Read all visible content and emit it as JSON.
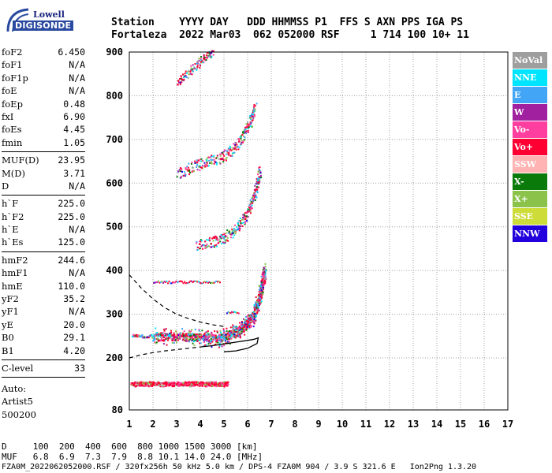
{
  "logo": {
    "line1": "Lowell",
    "line2": "DIGISONDE"
  },
  "header": {
    "line1": "Station    YYYY DAY   DDD HHMMSS P1  FFS S AXN PPS IGA PS",
    "line2": "Fortaleza  2022 Mar03  062 052000 RSF     1 714 100 10+ 11"
  },
  "params": {
    "group1": [
      {
        "label": "foF2",
        "value": "6.450"
      },
      {
        "label": "foF1",
        "value": "N/A"
      },
      {
        "label": "foF1p",
        "value": "N/A"
      },
      {
        "label": "foE",
        "value": "N/A"
      },
      {
        "label": "foEp",
        "value": "0.48"
      },
      {
        "label": "fxI",
        "value": "6.90"
      },
      {
        "label": "foEs",
        "value": "4.45"
      },
      {
        "label": "fmin",
        "value": "1.05"
      }
    ],
    "group2": [
      {
        "label": "MUF(D)",
        "value": "23.95"
      },
      {
        "label": "M(D)",
        "value": "3.71"
      },
      {
        "label": "D",
        "value": "N/A"
      }
    ],
    "group3": [
      {
        "label": "h`F",
        "value": "225.0"
      },
      {
        "label": "h`F2",
        "value": "225.0"
      },
      {
        "label": "h`E",
        "value": "N/A"
      },
      {
        "label": "h`Es",
        "value": "125.0"
      }
    ],
    "group4": [
      {
        "label": "hmF2",
        "value": "244.6"
      },
      {
        "label": "hmF1",
        "value": "N/A"
      },
      {
        "label": "hmE",
        "value": "110.0"
      },
      {
        "label": "yF2",
        "value": "35.2"
      },
      {
        "label": "yF1",
        "value": "N/A"
      },
      {
        "label": "yE",
        "value": "20.0"
      },
      {
        "label": "B0",
        "value": "29.1"
      },
      {
        "label": "B1",
        "value": "4.20"
      }
    ],
    "clevel": {
      "label": "C-level",
      "value": "33"
    },
    "auto": [
      "Auto:",
      "Artist5",
      "500200"
    ]
  },
  "legend": [
    {
      "label": "NoVal",
      "color": "#9e9e9e"
    },
    {
      "label": "NNE",
      "color": "#00e5ff"
    },
    {
      "label": "E",
      "color": "#42a5f5"
    },
    {
      "label": "W",
      "color": "#a020a0"
    },
    {
      "label": "Vo-",
      "color": "#ff3fa0"
    },
    {
      "label": "Vo+",
      "color": "#ff0033"
    },
    {
      "label": "SSW",
      "color": "#ffb3b3"
    },
    {
      "label": "X-",
      "color": "#0a7a0a"
    },
    {
      "label": "X+",
      "color": "#8bc34a"
    },
    {
      "label": "SSE",
      "color": "#cddc39"
    },
    {
      "label": "NNW",
      "color": "#2200dd"
    }
  ],
  "footer": {
    "line1": "D     100  200  400  600  800 1000 1500 3000 [km]",
    "line2": "MUF   6.8  6.9  7.3  7.9  8.8 10.1 14.0 24.0 [MHz]",
    "line3": "FZA0M_2022062052000.RSF / 320fx256h 50 kHz 5.0 km / DPS-4 FZA0M 904 / 3.9 S 321.6 E   Ion2Png 1.3.20"
  },
  "chart_data": {
    "type": "scatter",
    "xlim": [
      1,
      17
    ],
    "ylim": [
      80,
      900
    ],
    "x_ticks": [
      1,
      2,
      3,
      4,
      5,
      6,
      7,
      8,
      9,
      10,
      11,
      12,
      13,
      14,
      15,
      16,
      17
    ],
    "y_ticks": [
      80,
      200,
      300,
      400,
      500,
      600,
      700,
      800,
      900
    ],
    "grid": true,
    "traces": [
      {
        "name": "Es",
        "x_range": [
          1.05,
          4.45
        ],
        "height": 140,
        "color": "#ff0033"
      },
      {
        "name": "F-low",
        "points": [
          [
            2.0,
            250
          ],
          [
            3.0,
            250
          ],
          [
            4.0,
            248
          ],
          [
            4.8,
            245
          ],
          [
            5.3,
            255
          ],
          [
            5.8,
            270
          ],
          [
            6.2,
            295
          ],
          [
            6.45,
            330
          ],
          [
            6.6,
            370
          ],
          [
            6.7,
            400
          ]
        ]
      },
      {
        "name": "F-2hop",
        "points": [
          [
            3.8,
            460
          ],
          [
            4.5,
            465
          ],
          [
            5.0,
            475
          ],
          [
            5.5,
            495
          ],
          [
            5.9,
            525
          ],
          [
            6.2,
            560
          ],
          [
            6.4,
            600
          ],
          [
            6.5,
            630
          ]
        ]
      },
      {
        "name": "F-3hop",
        "points": [
          [
            3.0,
            620
          ],
          [
            3.7,
            640
          ],
          [
            4.3,
            650
          ],
          [
            4.9,
            660
          ],
          [
            5.4,
            680
          ],
          [
            5.8,
            710
          ],
          [
            6.1,
            740
          ],
          [
            6.3,
            780
          ]
        ]
      },
      {
        "name": "F-4hop",
        "points": [
          [
            3.0,
            830
          ],
          [
            3.4,
            850
          ],
          [
            3.8,
            870
          ],
          [
            4.2,
            890
          ],
          [
            4.5,
            900
          ]
        ]
      }
    ],
    "profile_curve": {
      "dashed_upper": [
        [
          1.0,
          390
        ],
        [
          1.5,
          360
        ],
        [
          2.0,
          335
        ],
        [
          2.5,
          315
        ],
        [
          3.0,
          300
        ],
        [
          3.5,
          290
        ],
        [
          4.0,
          282
        ],
        [
          4.5,
          276
        ],
        [
          5.0,
          272
        ]
      ],
      "dashed_lower": [
        [
          1.0,
          200
        ],
        [
          1.5,
          207
        ],
        [
          2.0,
          212
        ],
        [
          2.5,
          216
        ],
        [
          3.0,
          219
        ],
        [
          3.5,
          222
        ],
        [
          4.0,
          225
        ]
      ],
      "solid": [
        [
          4.0,
          225
        ],
        [
          4.5,
          228
        ],
        [
          5.0,
          232
        ],
        [
          5.5,
          236
        ],
        [
          6.0,
          240
        ],
        [
          6.3,
          243
        ],
        [
          6.45,
          246
        ],
        [
          6.4,
          233
        ],
        [
          6.0,
          222
        ],
        [
          5.5,
          216
        ],
        [
          5.0,
          214
        ]
      ]
    }
  }
}
